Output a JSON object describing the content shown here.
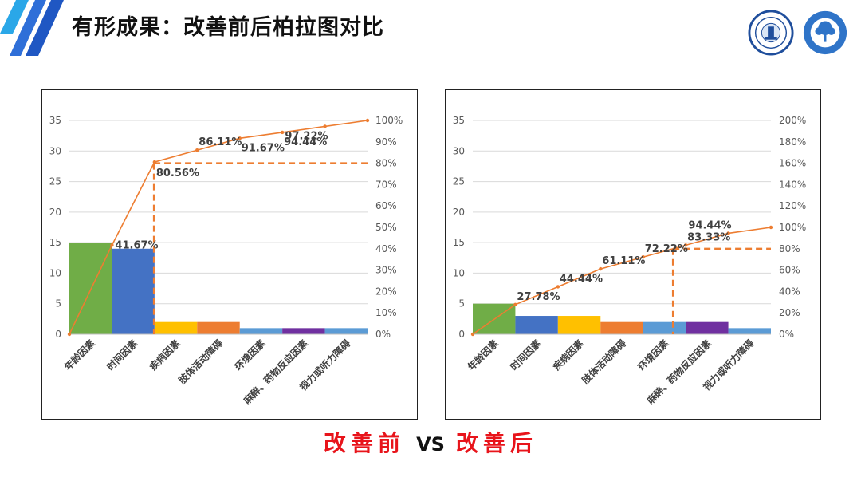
{
  "header": {
    "title": "有形成果：改善前后柏拉图对比"
  },
  "logos": [
    {
      "name": "school-seal-logo"
    },
    {
      "name": "hospital-tree-logo"
    }
  ],
  "caption": {
    "before": "改善前",
    "vs": "VS",
    "after": "改善后"
  },
  "colors": {
    "bar_colors": [
      "#70ad47",
      "#4472c4",
      "#ffc000",
      "#ed7d31",
      "#5b9bd5",
      "#7030a0",
      "#5b9bd5"
    ],
    "line": "#ed7d31",
    "caption_red": "#e8141b",
    "stripe_blue": "#2f6fd8",
    "stripe_light": "#2aa7e8"
  },
  "chart_data": [
    {
      "id": "before",
      "type": "bar",
      "categories": [
        "年龄因素",
        "时间因素",
        "疾病因素",
        "肢体活动障碍",
        "环境因素",
        "麻醉、药物反应因素",
        "视力或听力障碍"
      ],
      "values": [
        15,
        14,
        2,
        2,
        1,
        1,
        1
      ],
      "cumulative": [
        0,
        41.67,
        80.56,
        86.11,
        91.67,
        94.44,
        97.22,
        100
      ],
      "cumulative_labels": [
        "41.67%",
        "80.56%",
        "86.11%",
        "91.67%",
        "94.44%",
        "97.22%"
      ],
      "ylim": [
        0,
        35
      ],
      "yticks": [
        "0",
        "5",
        "10",
        "15",
        "20",
        "25",
        "30",
        "35"
      ],
      "y2lim": [
        0,
        100
      ],
      "y2ticks": [
        "0%",
        "10%",
        "20%",
        "30%",
        "40%",
        "50%",
        "60%",
        "70%",
        "80%",
        "90%",
        "100%"
      ],
      "cutoff_percent": 80,
      "grid": true
    },
    {
      "id": "after",
      "type": "bar",
      "categories": [
        "年龄因素",
        "时间因素",
        "疾病因素",
        "肢体活动障碍",
        "环境因素",
        "麻醉、药物反应因素",
        "视力或听力障碍"
      ],
      "values": [
        5,
        3,
        3,
        2,
        2,
        2,
        1
      ],
      "cumulative": [
        0,
        27.78,
        44.44,
        61.11,
        72.22,
        83.33,
        94.44,
        100
      ],
      "cumulative_labels": [
        "27.78%",
        "44.44%",
        "61.11%",
        "72.22%",
        "83.33%",
        "94.44%"
      ],
      "ylim": [
        0,
        35
      ],
      "yticks": [
        "0",
        "5",
        "10",
        "15",
        "20",
        "25",
        "30",
        "35"
      ],
      "y2lim": [
        0,
        200
      ],
      "y2ticks": [
        "0%",
        "20%",
        "40%",
        "60%",
        "80%",
        "100%",
        "120%",
        "140%",
        "160%",
        "180%",
        "200%"
      ],
      "cutoff_percent": 80,
      "grid": true
    }
  ]
}
